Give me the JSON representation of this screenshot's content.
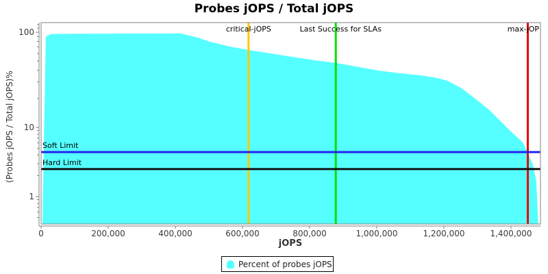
{
  "chart_data": {
    "type": "area",
    "title": "Probes jOPS / Total jOPS",
    "xlabel": "jOPS",
    "ylabel": "(Probes jOPS / Total jOPS)%",
    "y_scale": "log",
    "grid": false,
    "xlim": [
      0,
      1487000
    ],
    "ylim": [
      0.4,
      126
    ],
    "x_ticks": [
      {
        "value": 0,
        "label": "0"
      },
      {
        "value": 200000,
        "label": "200,000"
      },
      {
        "value": 400000,
        "label": "400,000"
      },
      {
        "value": 600000,
        "label": "600,000"
      },
      {
        "value": 800000,
        "label": "800,000"
      },
      {
        "value": 1000000,
        "label": "1,000,000"
      },
      {
        "value": 1200000,
        "label": "1,200,000"
      },
      {
        "value": 1400000,
        "label": "1,400,000"
      }
    ],
    "y_ticks": [
      {
        "value": 100,
        "label": "100"
      },
      {
        "value": 10,
        "label": "10"
      },
      {
        "value": 1,
        "label": "1"
      }
    ],
    "y_minor_ticks": [
      120,
      110,
      90,
      80,
      70,
      60,
      50,
      40,
      30,
      20,
      9,
      8,
      7,
      6,
      5,
      4,
      3,
      2,
      0.9,
      0.8,
      0.7,
      0.6,
      0.5
    ],
    "series": [
      {
        "name": "Percent of probes jOPS",
        "color": "#55FFFF",
        "points": [
          [
            4000,
            0.42
          ],
          [
            14000,
            90
          ],
          [
            30000,
            95.5
          ],
          [
            60000,
            96
          ],
          [
            120000,
            96.3
          ],
          [
            200000,
            96.6
          ],
          [
            300000,
            96.8
          ],
          [
            415000,
            97
          ],
          [
            470000,
            87
          ],
          [
            500000,
            80
          ],
          [
            560000,
            71
          ],
          [
            618000,
            65
          ],
          [
            680000,
            60
          ],
          [
            749000,
            55
          ],
          [
            810000,
            51
          ],
          [
            878000,
            47.5
          ],
          [
            940000,
            43.5
          ],
          [
            1006000,
            39.5
          ],
          [
            1070000,
            37
          ],
          [
            1137000,
            35
          ],
          [
            1180000,
            33
          ],
          [
            1210000,
            31
          ],
          [
            1251000,
            26
          ],
          [
            1290000,
            20.5
          ],
          [
            1333000,
            15.5
          ],
          [
            1367000,
            11.8
          ],
          [
            1402000,
            8.5
          ],
          [
            1435000,
            6.1
          ],
          [
            1449000,
            4.4
          ],
          [
            1465000,
            2.9
          ],
          [
            1475000,
            1.7
          ],
          [
            1481000,
            0.42
          ]
        ]
      }
    ],
    "markers_vertical": [
      {
        "label": "critical-jOPS",
        "value": 618000,
        "color": "#FFC800"
      },
      {
        "label": "Last Success for SLAs",
        "value": 878000,
        "color": "#00E400"
      },
      {
        "label": "max-jOP",
        "value": 1450000,
        "color": "#E80000"
      }
    ],
    "markers_horizontal": [
      {
        "label": "Soft Limit",
        "value": 4.4,
        "color": "#2222EE"
      },
      {
        "label": "Hard Limit",
        "value": 2.5,
        "color": "#141414"
      }
    ],
    "legend": {
      "label": "Percent of probes jOPS",
      "position": "bottom"
    },
    "colors": {
      "plot_border": "#808080",
      "axis": "#808080",
      "tick_text": "#3A3A3A",
      "background": "#FFFFFF"
    }
  }
}
